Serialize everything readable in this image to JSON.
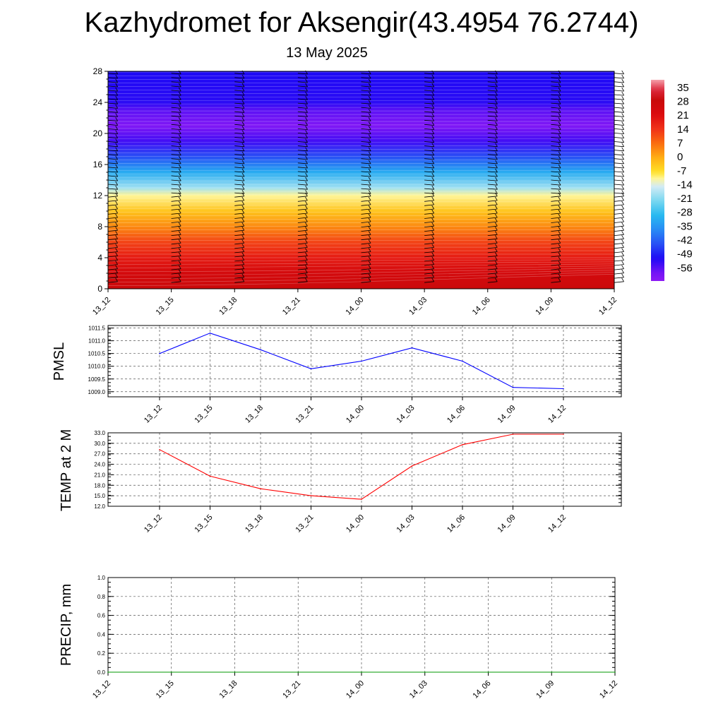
{
  "header": {
    "title": "Kazhydromet for Aksengir(43.4954 76.2744)",
    "date": "13 May 2025"
  },
  "colors": {
    "pmsl_line": "#0000ff",
    "temp_line": "#ff0000",
    "precip_line": "#009900",
    "grid": "#555555",
    "barb": "#000000"
  },
  "chart_data": [
    {
      "id": "cross-section",
      "type": "heatmap",
      "x_ticks": [
        "13_12",
        "13_15",
        "13_18",
        "13_21",
        "14_00",
        "14_03",
        "14_06",
        "14_09",
        "14_12"
      ],
      "y_ticks": [
        0,
        4,
        8,
        12,
        16,
        20,
        24,
        28
      ],
      "ylim": [
        0,
        28
      ],
      "colorbar": {
        "labels": [
          35,
          28,
          21,
          14,
          7,
          0,
          -7,
          -14,
          -21,
          -28,
          -35,
          -42,
          -49,
          -56
        ],
        "range": [
          -60,
          38
        ]
      },
      "temperature_profile": [
        {
          "height": 0,
          "value": 27
        },
        {
          "height": 2,
          "value": 24
        },
        {
          "height": 4,
          "value": 18
        },
        {
          "height": 6,
          "value": 12
        },
        {
          "height": 8,
          "value": 4
        },
        {
          "height": 10,
          "value": -3
        },
        {
          "height": 12,
          "value": -10
        },
        {
          "height": 13,
          "value": -18
        },
        {
          "height": 15,
          "value": -30
        },
        {
          "height": 17,
          "value": -42
        },
        {
          "height": 19,
          "value": -52
        },
        {
          "height": 21,
          "value": -58
        },
        {
          "height": 23,
          "value": -54
        },
        {
          "height": 24,
          "value": -50
        },
        {
          "height": 28,
          "value": -49
        }
      ],
      "grid": false,
      "has_wind_barbs": true
    },
    {
      "id": "pmsl",
      "type": "line",
      "ylabel": "PMSL",
      "x": [
        "13_12",
        "13_15",
        "13_18",
        "13_21",
        "14_00",
        "14_03",
        "14_06",
        "14_09",
        "14_12"
      ],
      "y_ticks": [
        "1009.0",
        "1009.5",
        "1010.0",
        "1010.5",
        "1011.0",
        "1011.5"
      ],
      "ylim": [
        1008.8,
        1011.6
      ],
      "series": [
        {
          "values": [
            1010.5,
            1011.3,
            1010.65,
            1009.9,
            1010.2,
            1010.72,
            1010.2,
            1009.17,
            1009.12
          ]
        }
      ],
      "grid": true
    },
    {
      "id": "temp",
      "type": "line",
      "ylabel": "TEMP at 2 M",
      "x": [
        "13_12",
        "13_15",
        "13_18",
        "13_21",
        "14_00",
        "14_03",
        "14_06",
        "14_09",
        "14_12"
      ],
      "y_ticks": [
        "12.0",
        "15.0",
        "18.0",
        "21.0",
        "24.0",
        "27.0",
        "30.0",
        "33.0"
      ],
      "ylim": [
        12,
        33
      ],
      "series": [
        {
          "values": [
            28.2,
            20.6,
            17.0,
            15.0,
            14.0,
            23.5,
            29.6,
            32.6,
            32.6
          ]
        }
      ],
      "grid": true
    },
    {
      "id": "precip",
      "type": "line",
      "ylabel": "PRECIP, mm",
      "x": [
        "13_12",
        "13_15",
        "13_18",
        "13_21",
        "14_00",
        "14_03",
        "14_06",
        "14_09",
        "14_12"
      ],
      "y_ticks": [
        "0.0",
        "0.2",
        "0.4",
        "0.6",
        "0.8",
        "1.0"
      ],
      "ylim": [
        0,
        1
      ],
      "series": [
        {
          "values": [
            0,
            0,
            0,
            0,
            0,
            0,
            0,
            0,
            0
          ]
        }
      ],
      "grid": true
    }
  ]
}
